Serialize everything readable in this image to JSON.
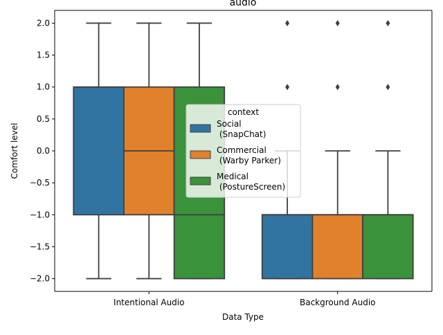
{
  "chart_data": {
    "type": "box",
    "title": "audio",
    "xlabel": "Data Type",
    "ylabel": "Comfort level",
    "categories": [
      "Intentional Audio",
      "Background Audio"
    ],
    "ylim": [
      -2.2,
      2.2
    ],
    "yticks": [
      -2.0,
      -1.5,
      -1.0,
      -0.5,
      0.0,
      0.5,
      1.0,
      1.5,
      2.0
    ],
    "ytick_labels": [
      "−2.0",
      "−1.5",
      "−1.0",
      "−0.5",
      "0.0",
      "0.5",
      "1.0",
      "1.5",
      "2.0"
    ],
    "grid": false,
    "legend": {
      "title": "context",
      "placement": "center",
      "entries": [
        "Social\n (SnapChat)",
        "Commercial\n (Warby Parker)",
        "Medical\n (PostureScreen)"
      ]
    },
    "series": [
      {
        "name": "Social\n (SnapChat)",
        "color": "#3274a1",
        "boxes": [
          {
            "category": "Intentional Audio",
            "whisker_low": -2,
            "q1": -1,
            "median": 1,
            "q3": 1,
            "whisker_high": 2,
            "outliers": []
          },
          {
            "category": "Background Audio",
            "whisker_low": -2,
            "q1": -2,
            "median": -1,
            "q3": -1,
            "whisker_high": 0,
            "outliers": [
              1,
              2
            ]
          }
        ]
      },
      {
        "name": "Commercial\n (Warby Parker)",
        "color": "#e1812c",
        "boxes": [
          {
            "category": "Intentional Audio",
            "whisker_low": -2,
            "q1": -1,
            "median": 0,
            "q3": 1,
            "whisker_high": 2,
            "outliers": []
          },
          {
            "category": "Background Audio",
            "whisker_low": -2,
            "q1": -2,
            "median": -1,
            "q3": -1,
            "whisker_high": 0,
            "outliers": [
              1,
              2
            ]
          }
        ]
      },
      {
        "name": "Medical\n (PostureScreen)",
        "color": "#3a923a",
        "boxes": [
          {
            "category": "Intentional Audio",
            "whisker_low": -2,
            "q1": -2,
            "median": -1,
            "q3": 1,
            "whisker_high": 2,
            "outliers": []
          },
          {
            "category": "Background Audio",
            "whisker_low": -2,
            "q1": -2,
            "median": -1,
            "q3": -1,
            "whisker_high": 0,
            "outliers": [
              1,
              2
            ]
          }
        ]
      }
    ]
  }
}
